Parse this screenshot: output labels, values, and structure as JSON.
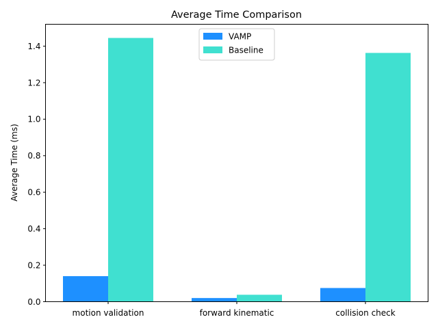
{
  "chart_data": {
    "type": "bar",
    "title": "Average Time Comparison",
    "xlabel": "",
    "ylabel": "Average Time (ms)",
    "categories": [
      "motion validation",
      "forward kinematic",
      "collision check"
    ],
    "series": [
      {
        "name": "VAMP",
        "values": [
          0.14,
          0.02,
          0.075
        ],
        "color": "#1e90ff"
      },
      {
        "name": "Baseline",
        "values": [
          1.445,
          0.038,
          1.363
        ],
        "color": "#40e0d0"
      }
    ],
    "ylim": [
      0,
      1.52
    ],
    "yticks": [
      0.0,
      0.2,
      0.4,
      0.6,
      0.8,
      1.0,
      1.2,
      1.4
    ],
    "ytick_labels": [
      "0.0",
      "0.2",
      "0.4",
      "0.6",
      "0.8",
      "1.0",
      "1.2",
      "1.4"
    ],
    "grid": false,
    "legend_position": "top-center"
  }
}
